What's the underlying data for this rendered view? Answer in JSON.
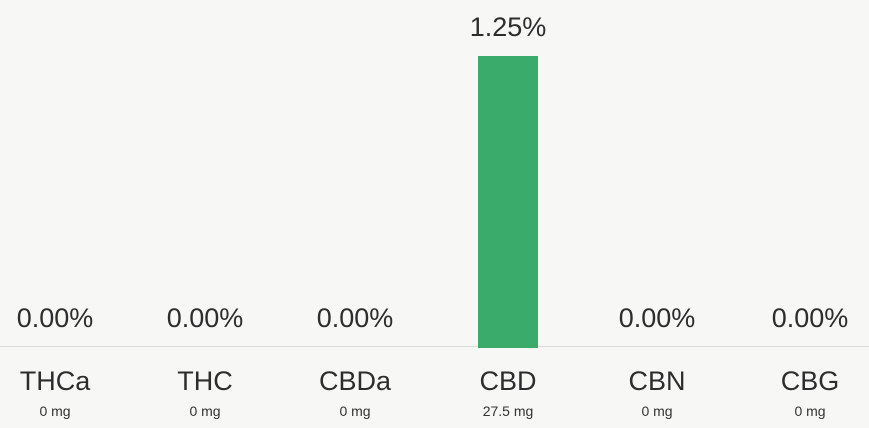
{
  "chart_data": {
    "type": "bar",
    "categories": [
      "THCa",
      "THC",
      "CBDa",
      "CBD",
      "CBN",
      "CBG"
    ],
    "values": [
      0.0,
      0.0,
      0.0,
      1.25,
      0.0,
      0.0
    ],
    "value_labels": [
      "0.00%",
      "0.00%",
      "0.00%",
      "1.25%",
      "0.00%",
      "0.00%"
    ],
    "amounts": [
      "0 mg",
      "0 mg",
      "0 mg",
      "27.5 mg",
      "0 mg",
      "0 mg"
    ],
    "ylim": [
      0,
      1.25
    ],
    "bar_color": "#3aab6b",
    "grid": false
  }
}
